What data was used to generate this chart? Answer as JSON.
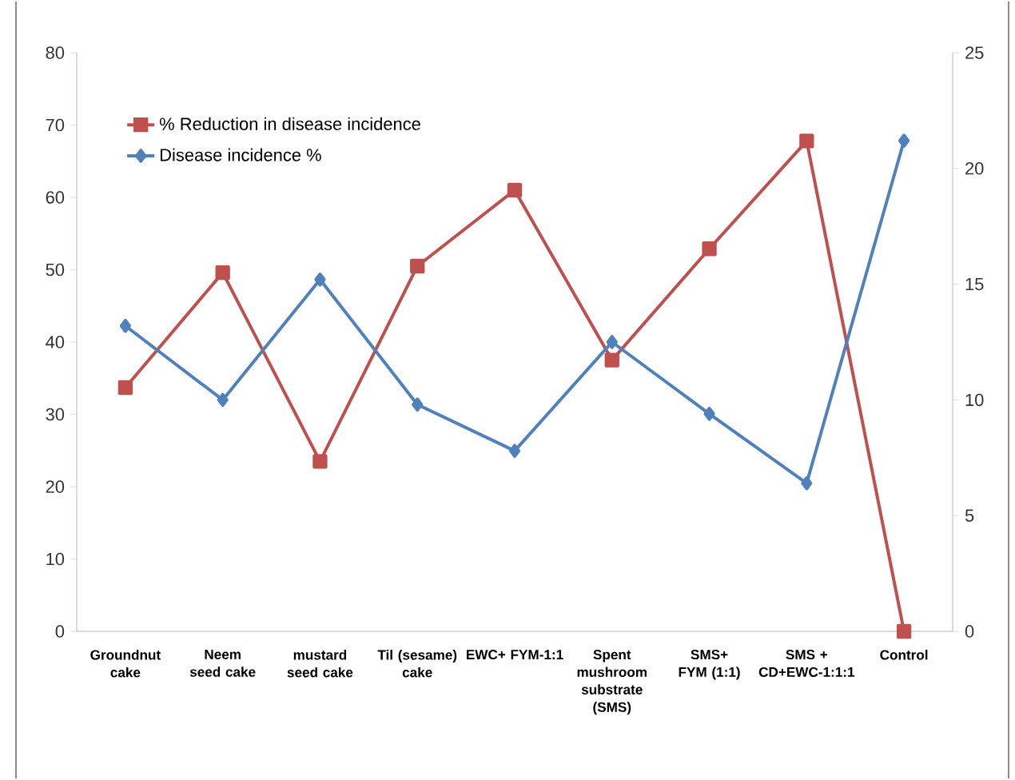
{
  "chart_data": {
    "type": "line",
    "categories": [
      "Groundnut cake",
      "Neem seed cake",
      "mustard seed cake",
      "Til (sesame) cake",
      "EWC+ FYM-1:1",
      "Spent mushroom substrate (SMS)",
      "SMS+ FYM (1:1)",
      "SMS + CD+EWC-1:1:1",
      "Control"
    ],
    "series": [
      {
        "name": "% Reduction in disease incidence",
        "color": "#c0504d",
        "marker": "square",
        "values": [
          33.7,
          49.6,
          23.5,
          50.5,
          61.0,
          37.5,
          52.9,
          67.8,
          0
        ]
      },
      {
        "name": "Disease incidence %",
        "color": "#4f81bd",
        "marker": "diamond",
        "axis": "y2",
        "values": [
          13.2,
          10.0,
          15.2,
          9.8,
          7.8,
          12.5,
          9.4,
          6.4,
          21.2
        ]
      }
    ],
    "ylim": [
      0,
      80
    ],
    "yticks": [
      0,
      10,
      20,
      30,
      40,
      50,
      60,
      70,
      80
    ],
    "y2lim": [
      0,
      25
    ],
    "y2ticks": [
      0,
      5,
      10,
      15,
      20,
      25
    ],
    "grid": false,
    "legend": "top left",
    "line_style": "solid"
  }
}
